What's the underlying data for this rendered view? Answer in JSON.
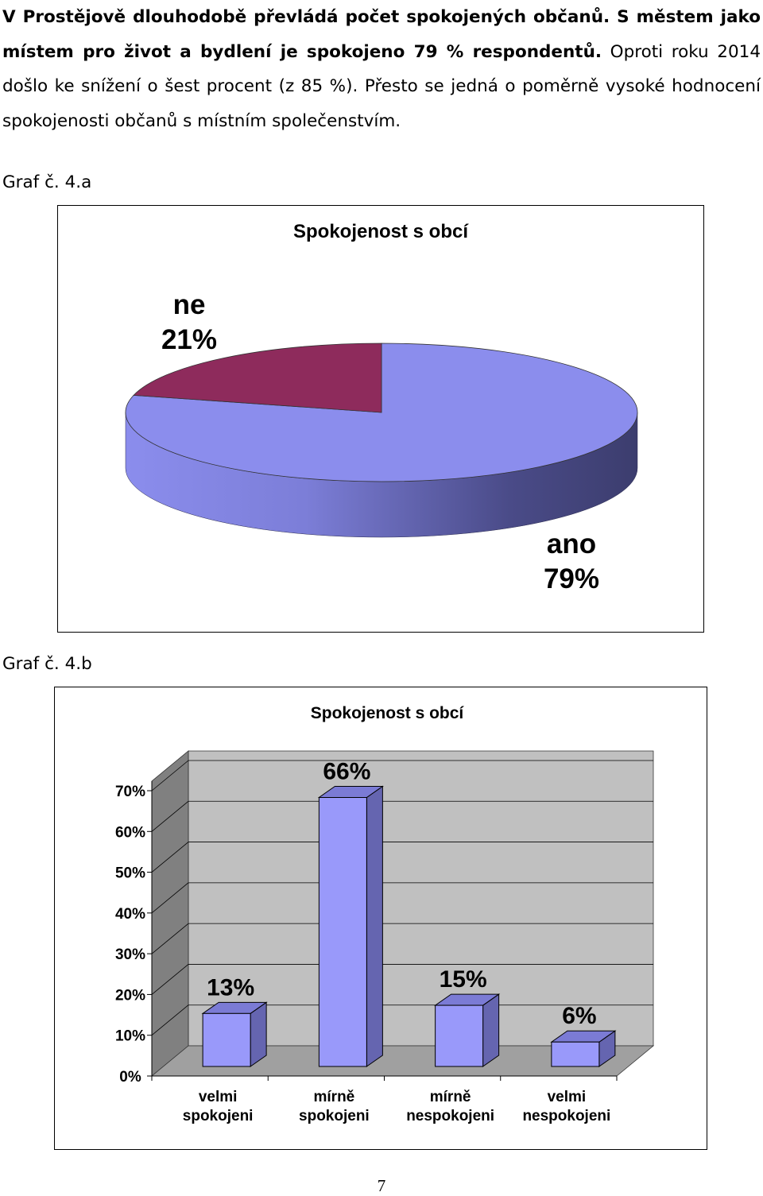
{
  "paragraph": {
    "bold": "V Prostějově dlouhodobě převládá počet spokojených občanů. S městem jako místem pro život a bydlení je spokojeno 79 % respondentů.",
    "normal": " Oproti roku 2014 došlo ke snížení o šest procent (z 85 %). Přesto se jedná o poměrně vysoké hodnocení spokojenosti občanů s místním společenstvím."
  },
  "captions": {
    "a": "Graf č. 4.a",
    "b": "Graf č. 4.b"
  },
  "chart_data": [
    {
      "type": "pie",
      "title": "Spokojenost s obcí",
      "slices": [
        {
          "label": "ano",
          "value": 79,
          "display": "79%",
          "color": "#8b8ded"
        },
        {
          "label": "ne",
          "value": 21,
          "display": "21%",
          "color": "#8e2b5c"
        }
      ]
    },
    {
      "type": "bar",
      "title": "Spokojenost s obcí",
      "categories": [
        [
          "velmi",
          "spokojeni"
        ],
        [
          "mírně",
          "spokojeni"
        ],
        [
          "mírně",
          "nespokojeni"
        ],
        [
          "velmi",
          "nespokojeni"
        ]
      ],
      "values": [
        13,
        66,
        15,
        6
      ],
      "data_labels": [
        "13%",
        "66%",
        "15%",
        "6%"
      ],
      "ylim": [
        0,
        70
      ],
      "yticks": [
        "0%",
        "10%",
        "20%",
        "30%",
        "40%",
        "50%",
        "60%",
        "70%"
      ],
      "grid": true,
      "colors": {
        "bar_front": "#9999fa",
        "bar_top": "#7b7bd5",
        "bar_side": "#6565b0",
        "wall": "#c0c0c0",
        "side_wall": "#808080",
        "floor": "#a0a0a0"
      }
    }
  ],
  "page_number": "7"
}
